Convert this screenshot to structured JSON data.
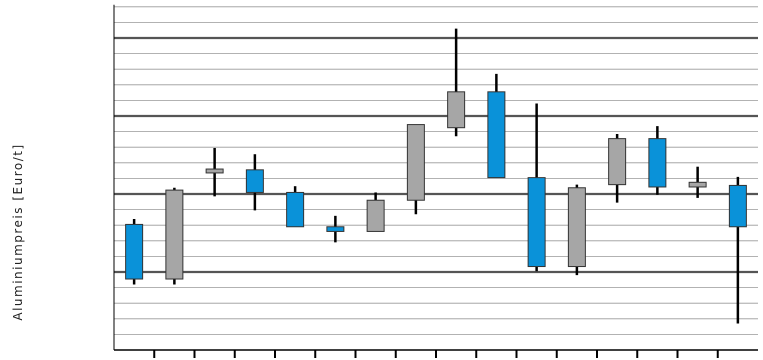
{
  "chart_data": {
    "type": "candlestick",
    "ylabel": "Aluminiumpreis [Euro/t]",
    "ylim": [
      0,
      22
    ],
    "major_gridlines": [
      5,
      10,
      15,
      20
    ],
    "minor_grid_step": 1,
    "grid": true,
    "legend": "none",
    "colors": {
      "up": "#a6a6a6",
      "down": "#0a92d9",
      "wick": "#000000",
      "grid_minor": "#999999",
      "grid_major": "#555555",
      "axis": "#000000"
    },
    "candles": [
      {
        "open": 8.05,
        "close": 4.55,
        "high": 8.4,
        "low": 4.2,
        "direction": "down"
      },
      {
        "open": 4.55,
        "close": 10.25,
        "high": 10.4,
        "low": 4.2,
        "direction": "up"
      },
      {
        "open": 11.35,
        "close": 11.6,
        "high": 12.95,
        "low": 9.85,
        "direction": "up"
      },
      {
        "open": 11.55,
        "close": 10.1,
        "high": 12.55,
        "low": 8.95,
        "direction": "down"
      },
      {
        "open": 10.1,
        "close": 7.9,
        "high": 10.5,
        "low": 7.9,
        "direction": "down"
      },
      {
        "open": 7.9,
        "close": 7.6,
        "high": 8.6,
        "low": 6.9,
        "direction": "down"
      },
      {
        "open": 7.6,
        "close": 9.6,
        "high": 10.1,
        "low": 7.6,
        "direction": "up"
      },
      {
        "open": 9.6,
        "close": 14.45,
        "high": 14.45,
        "low": 8.7,
        "direction": "up"
      },
      {
        "open": 14.25,
        "close": 16.55,
        "high": 20.6,
        "low": 13.7,
        "direction": "up"
      },
      {
        "open": 16.55,
        "close": 11.05,
        "high": 17.7,
        "low": 11.05,
        "direction": "down"
      },
      {
        "open": 11.05,
        "close": 5.35,
        "high": 15.8,
        "low": 5.05,
        "direction": "down"
      },
      {
        "open": 5.35,
        "close": 10.4,
        "high": 10.6,
        "low": 4.8,
        "direction": "up"
      },
      {
        "open": 10.6,
        "close": 13.55,
        "high": 13.85,
        "low": 9.45,
        "direction": "up"
      },
      {
        "open": 13.55,
        "close": 10.45,
        "high": 14.35,
        "low": 9.95,
        "direction": "down"
      },
      {
        "open": 10.45,
        "close": 10.75,
        "high": 11.75,
        "low": 9.75,
        "direction": "up"
      },
      {
        "open": 10.55,
        "close": 7.9,
        "high": 11.1,
        "low": 1.7,
        "direction": "down"
      }
    ]
  }
}
